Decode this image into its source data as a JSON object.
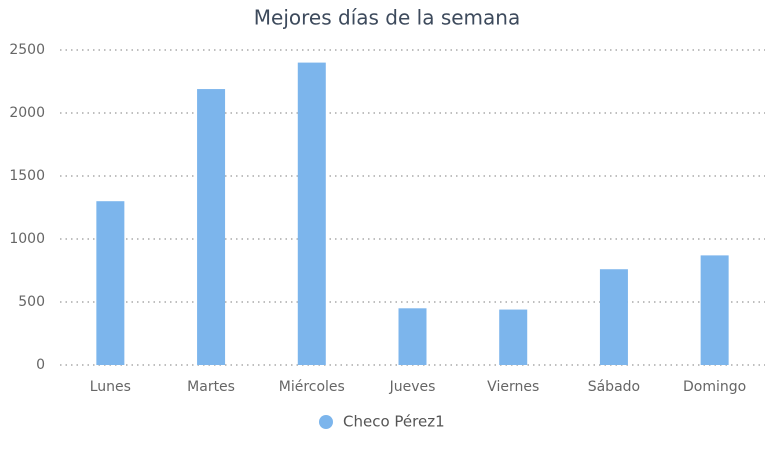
{
  "chart_data": {
    "type": "bar",
    "title": "Mejores días de la semana",
    "categories": [
      "Lunes",
      "Martes",
      "Miércoles",
      "Jueves",
      "Viernes",
      "Sábado",
      "Domingo"
    ],
    "series": [
      {
        "name": "Checo Pérez1",
        "color": "#7cb5ec",
        "values": [
          1300,
          2190,
          2400,
          450,
          440,
          760,
          870
        ]
      }
    ],
    "ylim": [
      0,
      2500
    ],
    "yticks": [
      0,
      500,
      1000,
      1500,
      2000,
      2500
    ],
    "grid": true
  }
}
